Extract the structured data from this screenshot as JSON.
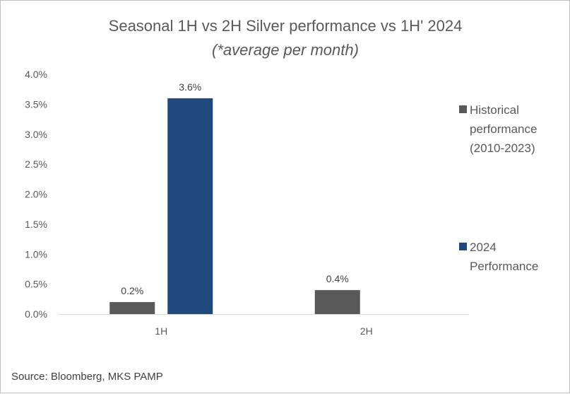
{
  "chart_data": {
    "type": "bar",
    "title": "Seasonal 1H vs 2H Silver performance vs 1H' 2024",
    "subtitle": "(*average per month)",
    "categories": [
      "1H",
      "2H"
    ],
    "series": [
      {
        "name": "Historical performance (2010-2023)",
        "legend_lines": [
          "Historical",
          "performance",
          "(2010-2023)"
        ],
        "color": "#595959",
        "values": [
          0.2,
          0.4
        ],
        "labels": [
          "0.2%",
          "0.4%"
        ]
      },
      {
        "name": "2024 Performance",
        "legend_lines": [
          "2024",
          "Performance"
        ],
        "color": "#1f497d",
        "values": [
          3.6,
          null
        ],
        "labels": [
          "3.6%",
          ""
        ]
      }
    ],
    "yticks": [
      "0.0%",
      "0.5%",
      "1.0%",
      "1.5%",
      "2.0%",
      "2.5%",
      "3.0%",
      "3.5%",
      "4.0%"
    ],
    "ylim": [
      0,
      4
    ],
    "xlabel": "",
    "ylabel": "",
    "grid": false,
    "legend_position": "right",
    "source": "Source: Bloomberg, MKS PAMP"
  }
}
